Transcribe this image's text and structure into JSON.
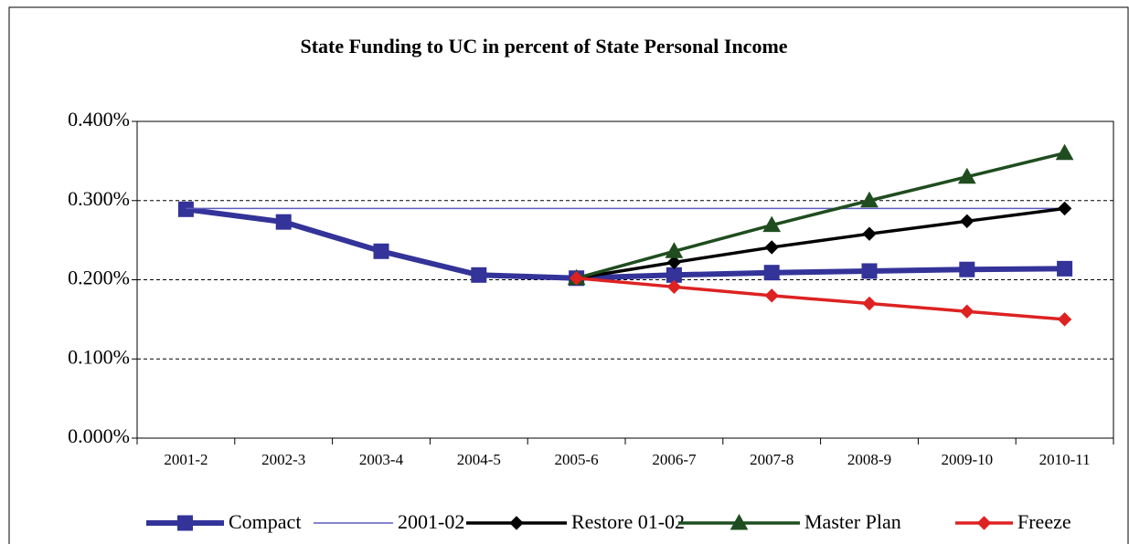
{
  "chart_data": {
    "type": "line",
    "title": "State Funding to UC in percent of State Personal Income",
    "categories": [
      "2001-2",
      "2002-3",
      "2003-4",
      "2004-5",
      "2005-6",
      "2006-7",
      "2007-8",
      "2008-9",
      "2009-10",
      "2010-11"
    ],
    "series": [
      {
        "name": "Compact",
        "color": "#333399",
        "marker": "square",
        "line_width": 6,
        "values": [
          0.289,
          0.273,
          0.236,
          0.206,
          0.202,
          0.206,
          0.209,
          0.211,
          0.213,
          0.214
        ]
      },
      {
        "name": "2001-02",
        "color": "#5b5bbf",
        "marker": "none",
        "line_width": 1.5,
        "values": [
          0.29,
          0.29,
          0.29,
          0.29,
          0.29,
          0.29,
          0.29,
          0.29,
          0.29,
          0.29
        ]
      },
      {
        "name": "Restore 01-02",
        "color": "#000000",
        "marker": "diamond",
        "line_width": 3.5,
        "values": [
          null,
          null,
          null,
          null,
          0.202,
          0.222,
          0.241,
          0.258,
          0.274,
          0.29
        ]
      },
      {
        "name": "Master Plan",
        "color": "#1f4d1f",
        "marker": "triangle",
        "line_width": 3.5,
        "values": [
          null,
          null,
          null,
          null,
          0.202,
          0.236,
          0.269,
          0.3,
          0.33,
          0.36
        ]
      },
      {
        "name": "Freeze",
        "color": "#dd2222",
        "marker": "diamond",
        "line_width": 3.5,
        "values": [
          null,
          null,
          null,
          null,
          0.202,
          0.191,
          0.18,
          0.17,
          0.16,
          0.15
        ]
      }
    ],
    "ylim": [
      0,
      0.4
    ],
    "yticks": [
      {
        "value": 0,
        "label": "0.000%"
      },
      {
        "value": 0.1,
        "label": "0.100%"
      },
      {
        "value": 0.2,
        "label": "0.200%"
      },
      {
        "value": 0.3,
        "label": "0.300%"
      },
      {
        "value": 0.4,
        "label": "0.400%"
      }
    ],
    "grid": true,
    "legend": "bottom"
  }
}
